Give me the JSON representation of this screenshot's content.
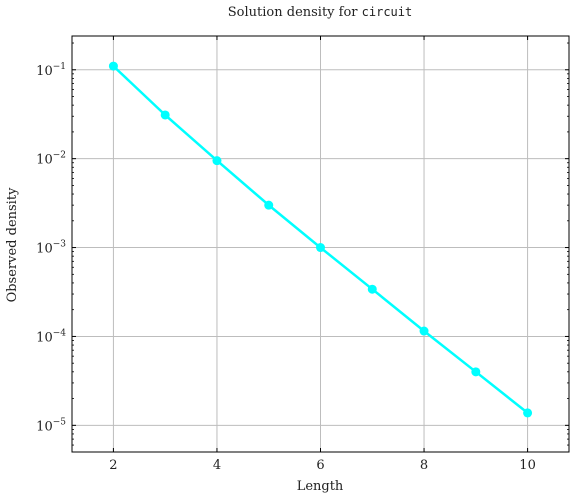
{
  "chart_data": {
    "type": "line",
    "title_prefix": "Solution density for ",
    "title_code": "circuit",
    "xlabel": "Length",
    "ylabel": "Observed density",
    "x_ticks": [
      2,
      4,
      6,
      8,
      10
    ],
    "xlim": [
      1.2,
      10.8
    ],
    "y_scale": "log",
    "y_tick_base": "10",
    "y_tick_exponents": [
      "−1",
      "−2",
      "−3",
      "−4",
      "−5"
    ],
    "y_tick_powers": [
      -1,
      -2,
      -3,
      -4,
      -5
    ],
    "ylim_log10": [
      -5.3,
      -0.62
    ],
    "grid": true,
    "color": "#00ffff",
    "series": [
      {
        "x": [
          2,
          3,
          4,
          5,
          6,
          7,
          8,
          9,
          10
        ],
        "y": [
          0.11,
          0.031,
          0.0095,
          0.003,
          0.001,
          0.00034,
          0.000115,
          4e-05,
          1.38e-05
        ]
      }
    ]
  }
}
